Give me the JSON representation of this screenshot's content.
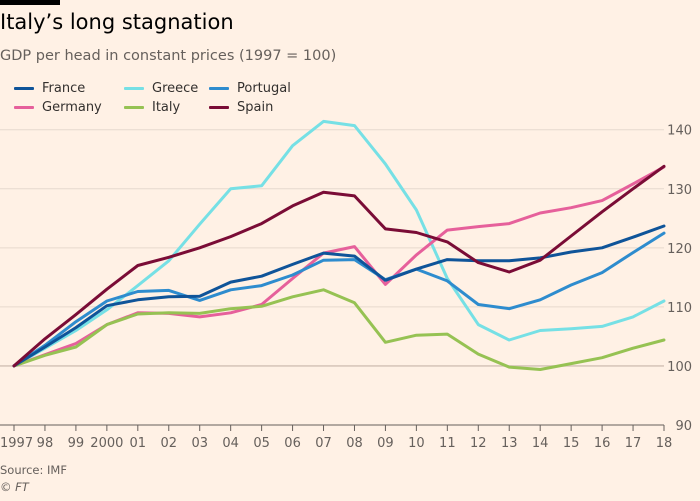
{
  "title": "Italy’s long stagnation",
  "subtitle": "GDP per head in constant prices (1997 = 100)",
  "source": "Source: IMF",
  "credit_symbol": "©",
  "credit_name": "FT",
  "chart_data": {
    "type": "line",
    "title": "Italy’s long stagnation",
    "subtitle": "GDP per head in constant prices (1997 = 100)",
    "x": [
      1997,
      1998,
      1999,
      2000,
      2001,
      2002,
      2003,
      2004,
      2005,
      2006,
      2007,
      2008,
      2009,
      2010,
      2011,
      2012,
      2013,
      2014,
      2015,
      2016,
      2017,
      2018
    ],
    "x_tick_labels": [
      "1997",
      "98",
      "99",
      "2000",
      "01",
      "02",
      "03",
      "04",
      "05",
      "06",
      "07",
      "08",
      "09",
      "10",
      "11",
      "12",
      "13",
      "14",
      "15",
      "16",
      "17",
      "18"
    ],
    "y_ticks": [
      90,
      100,
      110,
      120,
      130,
      140
    ],
    "ylim": [
      90,
      143
    ],
    "y_axis_side": "right",
    "grid": true,
    "baseline": 100,
    "legend_position": "top-left",
    "series": [
      {
        "name": "France",
        "color": "#0f5499",
        "values": [
          100,
          103.2,
          106.5,
          110.2,
          111.2,
          111.7,
          111.8,
          114.2,
          115.2,
          117.2,
          119.1,
          118.6,
          114.5,
          116.4,
          118.0,
          117.8,
          117.8,
          118.3,
          119.3,
          120.0,
          121.8,
          123.7
        ]
      },
      {
        "name": "Germany",
        "color": "#e6609b",
        "values": [
          100,
          101.9,
          103.8,
          107.0,
          109.0,
          108.9,
          108.3,
          109.0,
          110.4,
          114.8,
          119.1,
          120.2,
          113.8,
          118.8,
          123.0,
          123.6,
          124.1,
          125.9,
          126.8,
          128.0,
          130.8,
          133.7
        ]
      },
      {
        "name": "Greece",
        "color": "#76e0e5",
        "values": [
          100,
          103.0,
          106.0,
          109.5,
          113.6,
          117.8,
          124.0,
          130.0,
          130.5,
          137.3,
          141.4,
          140.7,
          134.2,
          126.4,
          114.8,
          107.0,
          104.4,
          106.0,
          106.3,
          106.7,
          108.3,
          111.0
        ]
      },
      {
        "name": "Italy",
        "color": "#96c253",
        "values": [
          100,
          101.8,
          103.2,
          107.0,
          108.8,
          109.0,
          108.9,
          109.7,
          110.1,
          111.7,
          112.9,
          110.7,
          104.0,
          105.2,
          105.4,
          102.0,
          99.8,
          99.4,
          100.4,
          101.4,
          103.0,
          104.4
        ]
      },
      {
        "name": "Portugal",
        "color": "#2e8cce",
        "values": [
          100,
          103.5,
          107.5,
          111.0,
          112.6,
          112.8,
          111.1,
          112.9,
          113.6,
          115.4,
          117.9,
          118.0,
          114.6,
          116.4,
          114.4,
          110.4,
          109.7,
          111.2,
          113.7,
          115.8,
          119.2,
          122.5
        ]
      },
      {
        "name": "Spain",
        "color": "#7a0c36",
        "values": [
          100,
          104.6,
          108.7,
          113.0,
          117.0,
          118.4,
          120.0,
          121.9,
          124.1,
          127.1,
          129.4,
          128.8,
          123.2,
          122.6,
          121.0,
          117.5,
          115.9,
          117.9,
          122.0,
          126.1,
          130.0,
          133.8
        ]
      }
    ]
  }
}
